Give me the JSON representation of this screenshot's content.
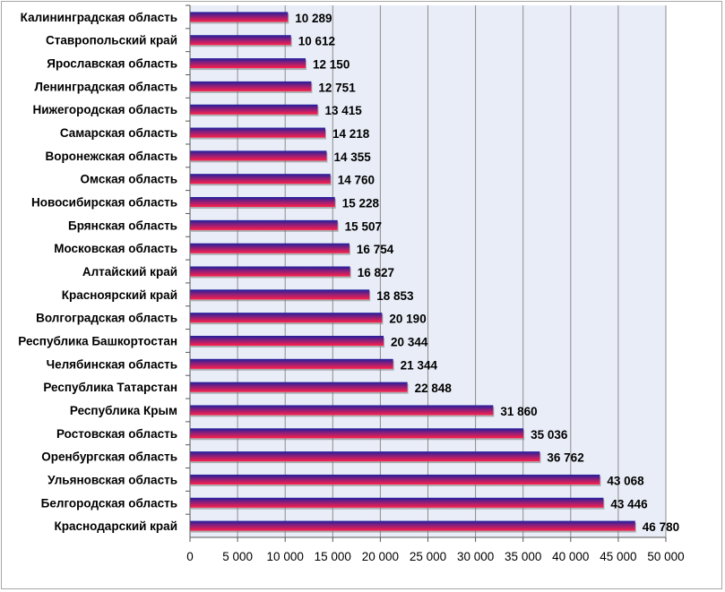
{
  "chart_data": {
    "type": "bar",
    "orientation": "horizontal",
    "categories": [
      "Калининградская область",
      "Ставропольский край",
      "Ярославская область",
      "Ленинградская область",
      "Нижегородская область",
      "Самарская область",
      "Воронежская область",
      "Омская область",
      "Новосибирская область",
      "Брянская область",
      "Московская область",
      "Алтайский край",
      "Красноярский край",
      "Волгоградская область",
      "Республика Башкортостан",
      "Челябинская область",
      "Республика Татарстан",
      "Республика Крым",
      "Ростовская область",
      "Оренбургская область",
      "Ульяновская область",
      "Белгородская область",
      "Краснодарский край"
    ],
    "values": [
      10289,
      10612,
      12150,
      12751,
      13415,
      14218,
      14355,
      14760,
      15228,
      15507,
      16754,
      16827,
      18853,
      20190,
      20344,
      21344,
      22848,
      31860,
      35036,
      36762,
      43068,
      43446,
      46780
    ],
    "value_labels": [
      "10 289",
      "10 612",
      "12 150",
      "12 751",
      "13 415",
      "14 218",
      "14 355",
      "14 760",
      "15 228",
      "15 507",
      "16 754",
      "16 827",
      "18 853",
      "20 190",
      "20 344",
      "21 344",
      "22 848",
      "31 860",
      "35 036",
      "36 762",
      "43 068",
      "43 446",
      "46 780"
    ],
    "x_ticks": [
      0,
      5000,
      10000,
      15000,
      20000,
      25000,
      30000,
      35000,
      40000,
      45000,
      50000
    ],
    "x_tick_labels": [
      "0",
      "5 000",
      "10 000",
      "15 000",
      "20 000",
      "25 000",
      "30 000",
      "35 000",
      "40 000",
      "45 000",
      "50 000"
    ],
    "xlim": [
      0,
      50000
    ],
    "grid": "vertical",
    "legend": "none",
    "title": "",
    "xlabel": "",
    "ylabel": "",
    "colors": {
      "bar_top": "#1f1f9e",
      "bar_bottom": "#ff1f4a",
      "plot_background": "#e9edf7",
      "grid": "#8c8c8c"
    }
  }
}
